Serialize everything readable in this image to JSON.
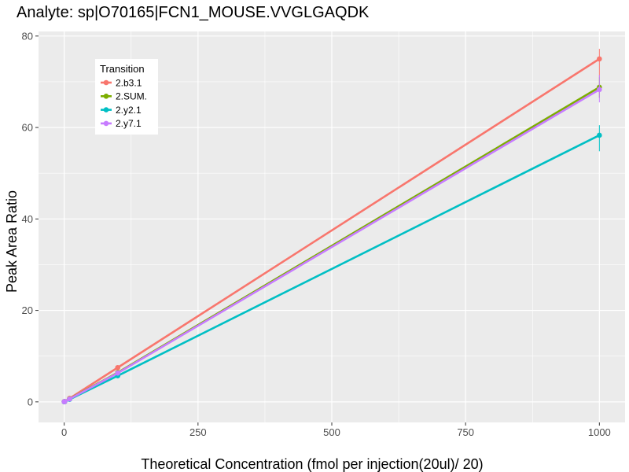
{
  "chart_data": {
    "type": "line",
    "title": "Analyte: sp|O70165|FCN1_MOUSE.VVGLGAQDK",
    "xlabel": "Theoretical Concentration (fmol per injection(20ul)/ 20)",
    "ylabel": "Peak Area Ratio",
    "xlim": [
      -48,
      1048
    ],
    "ylim": [
      -4.5,
      81
    ],
    "xticks": [
      0,
      250,
      500,
      750,
      1000
    ],
    "xtick_labels": [
      "0",
      "250",
      "500",
      "750",
      "1000"
    ],
    "yticks": [
      0,
      20,
      40,
      60,
      80
    ],
    "ytick_labels": [
      "0",
      "20",
      "40",
      "60",
      "80"
    ],
    "grid": true,
    "legend": {
      "title": "Transition",
      "position": "top-left"
    },
    "series": [
      {
        "name": "2.b3.1",
        "color": "#F8766D",
        "points": [
          [
            0,
            0.05
          ],
          [
            1,
            0.08
          ],
          [
            10,
            0.75
          ],
          [
            100,
            7.5
          ],
          [
            1000,
            75.0
          ]
        ],
        "error_bars": [
          [
            1000,
            71.0,
            77.2
          ]
        ]
      },
      {
        "name": "2.SUM.",
        "color": "#7CAE00",
        "points": [
          [
            0,
            0.04
          ],
          [
            1,
            0.07
          ],
          [
            10,
            0.65
          ],
          [
            100,
            6.4
          ],
          [
            1000,
            68.8
          ]
        ],
        "error_bars": [
          [
            1000,
            66.5,
            71.0
          ]
        ]
      },
      {
        "name": "2.y2.1",
        "color": "#00BFC4",
        "points": [
          [
            0,
            0.03
          ],
          [
            1,
            0.06
          ],
          [
            10,
            0.55
          ],
          [
            100,
            5.7
          ],
          [
            1000,
            58.3
          ]
        ],
        "error_bars": [
          [
            1000,
            54.8,
            60.5
          ]
        ]
      },
      {
        "name": "2.y7.1",
        "color": "#C77CFF",
        "points": [
          [
            0,
            0.04
          ],
          [
            1,
            0.07
          ],
          [
            10,
            0.62
          ],
          [
            100,
            6.3
          ],
          [
            1000,
            68.3
          ]
        ],
        "error_bars": [
          [
            1000,
            65.5,
            71.5
          ]
        ]
      }
    ]
  }
}
